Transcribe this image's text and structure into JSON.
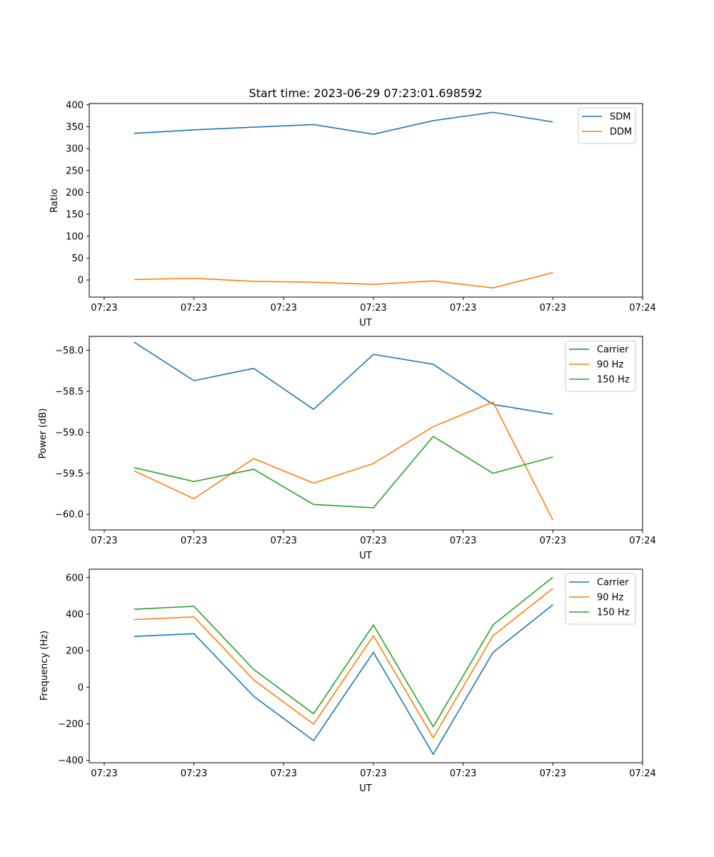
{
  "colors": {
    "blue": "#1f77b4",
    "orange": "#ff7f0e",
    "green": "#2ca02c"
  },
  "chart_data": [
    {
      "type": "line",
      "title": "Start time: 2023-06-29 07:23:01.698592",
      "xlabel": "UT",
      "ylabel": "Ratio",
      "xtick_labels": [
        "07:23",
        "07:23",
        "07:23",
        "07:23",
        "07:23",
        "07:23",
        "07:24"
      ],
      "yticks": [
        0,
        50,
        100,
        150,
        200,
        250,
        300,
        350,
        400
      ],
      "ytick_labels": [
        "0",
        "50",
        "100",
        "150",
        "200",
        "250",
        "300",
        "350",
        "400"
      ],
      "ylim": [
        -39,
        403
      ],
      "xlim": [
        -0.75,
        8.5
      ],
      "legend_position": "upper-right",
      "series": [
        {
          "name": "SDM",
          "color": "#1f77b4",
          "x": [
            0,
            1,
            2,
            3,
            4,
            5,
            6,
            7
          ],
          "values": [
            335,
            343,
            349,
            355,
            333,
            364,
            383,
            361
          ]
        },
        {
          "name": "DDM",
          "color": "#ff7f0e",
          "x": [
            0,
            1,
            2,
            3,
            4,
            5,
            6,
            7
          ],
          "values": [
            1,
            4,
            -3,
            -5,
            -10,
            -2,
            -18,
            17
          ]
        }
      ]
    },
    {
      "type": "line",
      "title": "",
      "xlabel": "UT",
      "ylabel": "Power (dB)",
      "xtick_labels": [
        "07:23",
        "07:23",
        "07:23",
        "07:23",
        "07:23",
        "07:23",
        "07:24"
      ],
      "yticks": [
        -60.0,
        -59.5,
        -59.0,
        -58.5,
        -58.0
      ],
      "ytick_labels": [
        "−60.0",
        "−59.5",
        "−59.0",
        "−58.5",
        "−58.0"
      ],
      "ylim": [
        -60.19,
        -57.83
      ],
      "xlim": [
        -0.75,
        8.5
      ],
      "legend_position": "upper-right",
      "series": [
        {
          "name": "Carrier",
          "color": "#1f77b4",
          "x": [
            0,
            1,
            2,
            3,
            4,
            5,
            6,
            7
          ],
          "values": [
            -57.9,
            -58.37,
            -58.22,
            -58.72,
            -58.05,
            -58.17,
            -58.66,
            -58.78
          ]
        },
        {
          "name": "90 Hz",
          "color": "#ff7f0e",
          "x": [
            0,
            1,
            2,
            3,
            4,
            5,
            6,
            7
          ],
          "values": [
            -59.47,
            -59.81,
            -59.32,
            -59.62,
            -59.38,
            -58.93,
            -58.63,
            -60.07
          ]
        },
        {
          "name": "150 Hz",
          "color": "#2ca02c",
          "x": [
            0,
            1,
            2,
            3,
            4,
            5,
            6,
            7
          ],
          "values": [
            -59.43,
            -59.6,
            -59.45,
            -59.88,
            -59.92,
            -59.05,
            -59.5,
            -59.3
          ]
        }
      ]
    },
    {
      "type": "line",
      "title": "",
      "xlabel": "UT",
      "ylabel": "Frequency (Hz)",
      "xtick_labels": [
        "07:23",
        "07:23",
        "07:23",
        "07:23",
        "07:23",
        "07:23",
        "07:24"
      ],
      "yticks": [
        -400,
        -200,
        0,
        200,
        400,
        600
      ],
      "ytick_labels": [
        "−400",
        "−200",
        "0",
        "200",
        "400",
        "600"
      ],
      "ylim": [
        -413,
        646
      ],
      "xlim": [
        -0.75,
        8.5
      ],
      "legend_position": "upper-right",
      "series": [
        {
          "name": "Carrier",
          "color": "#1f77b4",
          "x": [
            0,
            1,
            2,
            3,
            4,
            5,
            6,
            7
          ],
          "values": [
            278,
            293,
            -50,
            -292,
            191,
            -367,
            191,
            451
          ]
        },
        {
          "name": "90 Hz",
          "color": "#ff7f0e",
          "x": [
            0,
            1,
            2,
            3,
            4,
            5,
            6,
            7
          ],
          "values": [
            370,
            385,
            40,
            -202,
            282,
            -276,
            282,
            541
          ]
        },
        {
          "name": "150 Hz",
          "color": "#2ca02c",
          "x": [
            0,
            1,
            2,
            3,
            4,
            5,
            6,
            7
          ],
          "values": [
            427,
            443,
            97,
            -145,
            341,
            -216,
            341,
            602
          ]
        }
      ]
    }
  ]
}
